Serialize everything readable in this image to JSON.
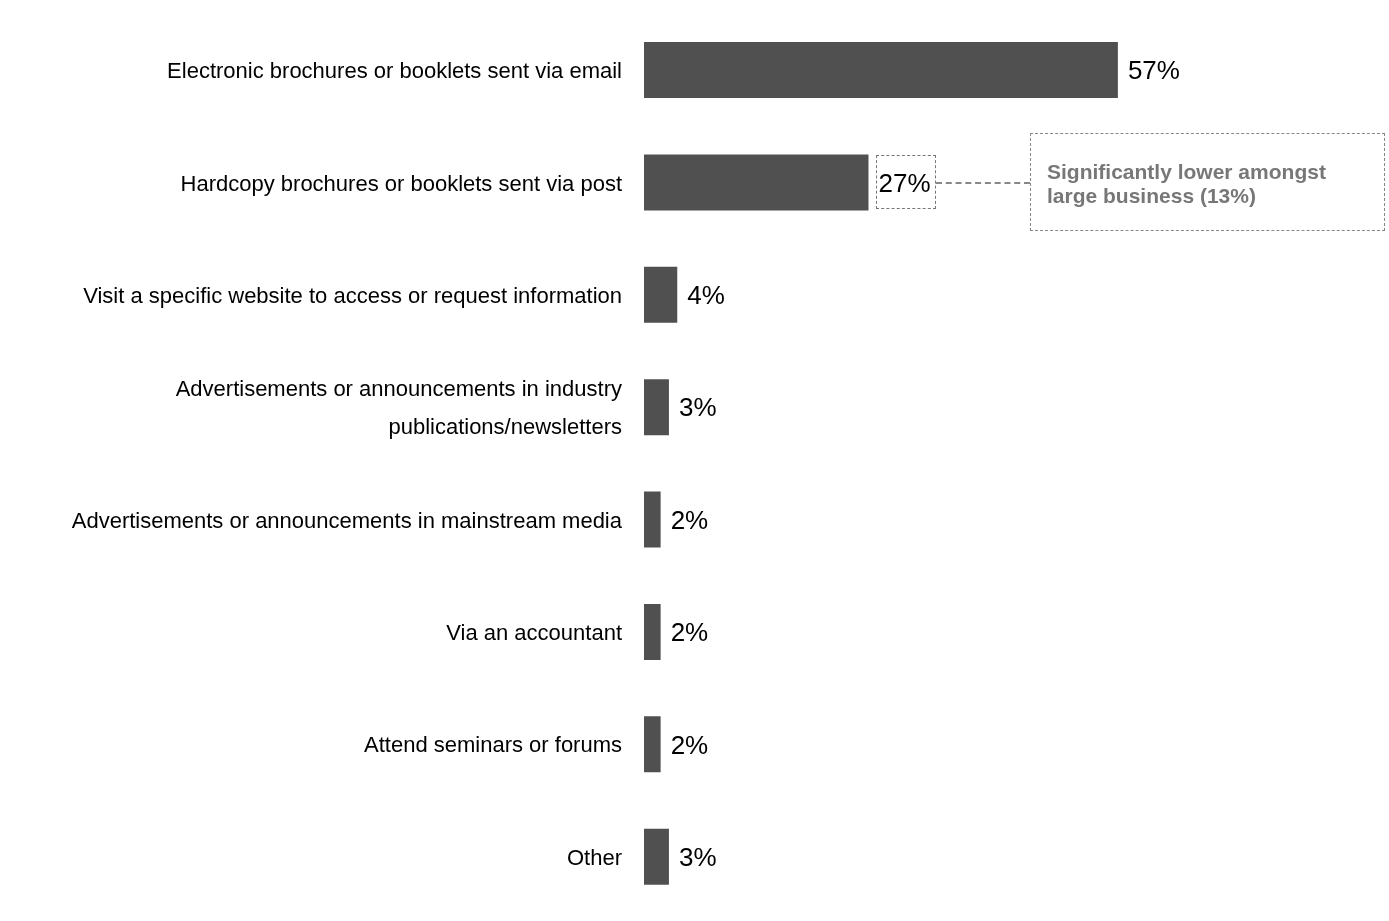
{
  "chart_data": {
    "type": "bar",
    "orientation": "horizontal",
    "categories": [
      "Electronic brochures or booklets sent via email",
      "Hardcopy brochures or booklets sent via post",
      "Visit a specific website to access or request information",
      "Advertisements or announcements in industry publications/newsletters",
      "Advertisements or announcements in mainstream media",
      "Via an accountant",
      "Attend seminars or forums",
      "Other"
    ],
    "values": [
      57,
      27,
      4,
      3,
      2,
      2,
      2,
      3
    ],
    "value_labels": [
      "57%",
      "27%",
      "4%",
      "3%",
      "2%",
      "2%",
      "2%",
      "3%"
    ],
    "color": "#505050",
    "annotations": [
      "Significantly lower amongst large business (13%)"
    ],
    "grid": false,
    "legend": false
  }
}
